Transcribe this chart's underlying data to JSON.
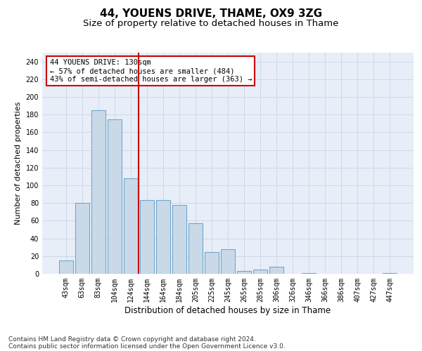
{
  "title_line1": "44, YOUENS DRIVE, THAME, OX9 3ZG",
  "title_line2": "Size of property relative to detached houses in Thame",
  "xlabel": "Distribution of detached houses by size in Thame",
  "ylabel": "Number of detached properties",
  "categories": [
    "43sqm",
    "63sqm",
    "83sqm",
    "104sqm",
    "124sqm",
    "144sqm",
    "164sqm",
    "184sqm",
    "205sqm",
    "225sqm",
    "245sqm",
    "265sqm",
    "285sqm",
    "306sqm",
    "326sqm",
    "346sqm",
    "366sqm",
    "386sqm",
    "407sqm",
    "427sqm",
    "447sqm"
  ],
  "values": [
    15,
    80,
    185,
    175,
    108,
    83,
    83,
    78,
    57,
    25,
    28,
    3,
    5,
    8,
    0,
    1,
    0,
    0,
    0,
    0,
    1
  ],
  "bar_color": "#c9d9e8",
  "bar_edge_color": "#6fa8cc",
  "vline_color": "#cc0000",
  "annotation_text": "44 YOUENS DRIVE: 130sqm\n← 57% of detached houses are smaller (484)\n43% of semi-detached houses are larger (363) →",
  "annotation_box_color": "#cc0000",
  "ylim": [
    0,
    250
  ],
  "yticks": [
    0,
    20,
    40,
    60,
    80,
    100,
    120,
    140,
    160,
    180,
    200,
    220,
    240
  ],
  "grid_color": "#d0d8e8",
  "background_color": "#e8eef8",
  "footer_line1": "Contains HM Land Registry data © Crown copyright and database right 2024.",
  "footer_line2": "Contains public sector information licensed under the Open Government Licence v3.0.",
  "title_fontsize": 11,
  "subtitle_fontsize": 9.5,
  "axis_label_fontsize": 8,
  "tick_fontsize": 7,
  "footer_fontsize": 6.5,
  "annotation_fontsize": 7.5
}
